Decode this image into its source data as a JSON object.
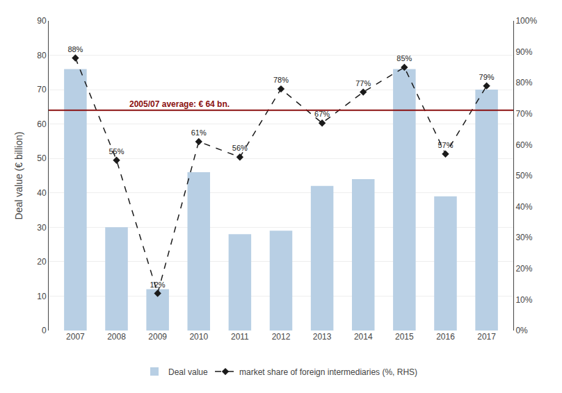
{
  "chart_data": {
    "type": "bar",
    "categories": [
      "2007",
      "2008",
      "2009",
      "2010",
      "2011",
      "2012",
      "2013",
      "2014",
      "2015",
      "2016",
      "2017"
    ],
    "series": [
      {
        "name": "Deal value",
        "type": "bar",
        "color": "#b8cfe4",
        "values": [
          76,
          30,
          12,
          46,
          28,
          29,
          42,
          44,
          76,
          39,
          70
        ]
      },
      {
        "name": "market share of foreign intermediaries (%, RHS)",
        "type": "line",
        "axis": "y2",
        "color": "#1a1a1a",
        "line_style": "dashed",
        "marker": "diamond",
        "data_labels": true,
        "values": [
          88,
          55,
          12,
          61,
          56,
          78,
          67,
          77,
          85,
          57,
          79
        ],
        "value_labels": [
          "88%",
          "55%",
          "12%",
          "61%",
          "56%",
          "78%",
          "67%",
          "77%",
          "85%",
          "57%",
          "79%"
        ]
      }
    ],
    "ylabel": "Deal value (€ billion)",
    "ylim": [
      0,
      90
    ],
    "yticks": [
      0,
      10,
      20,
      30,
      40,
      50,
      60,
      70,
      80,
      90
    ],
    "y2lim": [
      0,
      100
    ],
    "y2ticks": [
      {
        "value": 0,
        "label": "0%"
      },
      {
        "value": 10,
        "label": "10%"
      },
      {
        "value": 20,
        "label": "20%"
      },
      {
        "value": 30,
        "label": "30%"
      },
      {
        "value": 40,
        "label": "40%"
      },
      {
        "value": 50,
        "label": "50%"
      },
      {
        "value": 60,
        "label": "60%"
      },
      {
        "value": 70,
        "label": "70%"
      },
      {
        "value": 80,
        "label": "80%"
      },
      {
        "value": 90,
        "label": "90%"
      },
      {
        "value": 100,
        "label": "100%"
      }
    ],
    "reference_line": {
      "value": 64,
      "label": "2005/07 average: € 64 bn.",
      "color": "#8b1010"
    },
    "grid": true,
    "legend": "bottom"
  }
}
